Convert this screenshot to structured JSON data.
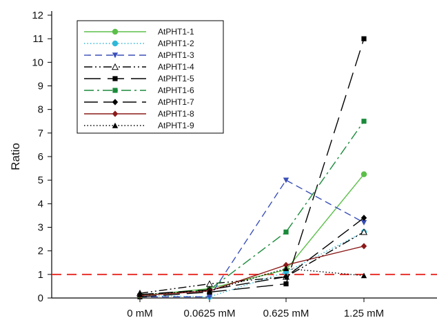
{
  "chart_data": {
    "type": "line",
    "title": "",
    "xlabel": "",
    "ylabel": "Ratio",
    "categories": [
      "0 mM",
      "0.0625 mM",
      "0.625 mM",
      "1.25 mM"
    ],
    "ylim": [
      0,
      12
    ],
    "yticks": [
      0,
      1,
      2,
      3,
      4,
      5,
      6,
      7,
      8,
      9,
      10,
      11,
      12
    ],
    "grid": false,
    "legend_position": "top-left",
    "reference_line": {
      "y": 1,
      "color": "#e8302a",
      "style": "dashed"
    },
    "series": [
      {
        "name": "AtPHT1-1",
        "values": [
          0.1,
          0.4,
          1.2,
          5.25
        ],
        "color": "#5cbf4a",
        "dash": "solid",
        "marker": "circle-filled"
      },
      {
        "name": "AtPHT1-2",
        "values": [
          0.1,
          0.05,
          1.1,
          2.8
        ],
        "color": "#2fb8d8",
        "dash": "dotted",
        "marker": "circle-filled"
      },
      {
        "name": "AtPHT1-3",
        "values": [
          0.05,
          0.05,
          5.0,
          3.2
        ],
        "color": "#3a4fb8",
        "dash": "dashed",
        "marker": "triangle-down-filled"
      },
      {
        "name": "AtPHT1-4",
        "values": [
          0.2,
          0.6,
          0.9,
          2.8
        ],
        "color": "#000000",
        "dash": "dashdotdot",
        "marker": "triangle-up-open"
      },
      {
        "name": "AtPHT1-5",
        "values": [
          0.05,
          0.25,
          0.6,
          11.0
        ],
        "color": "#000000",
        "dash": "longdash",
        "marker": "square-filled"
      },
      {
        "name": "AtPHT1-6",
        "values": [
          0.1,
          0.35,
          2.8,
          7.5
        ],
        "color": "#1a8a3a",
        "dash": "dashdot",
        "marker": "square-filled"
      },
      {
        "name": "AtPHT1-7",
        "values": [
          0.15,
          0.35,
          0.9,
          3.4
        ],
        "color": "#000000",
        "dash": "longdash2",
        "marker": "diamond-filled"
      },
      {
        "name": "AtPHT1-8",
        "values": [
          0.1,
          0.3,
          1.4,
          2.2
        ],
        "color": "#8b1a1a",
        "dash": "solid",
        "marker": "diamond-filled"
      },
      {
        "name": "AtPHT1-9",
        "values": [
          0.15,
          0.3,
          1.25,
          0.95
        ],
        "color": "#000000",
        "dash": "dotted",
        "marker": "triangle-up-filled"
      }
    ]
  }
}
